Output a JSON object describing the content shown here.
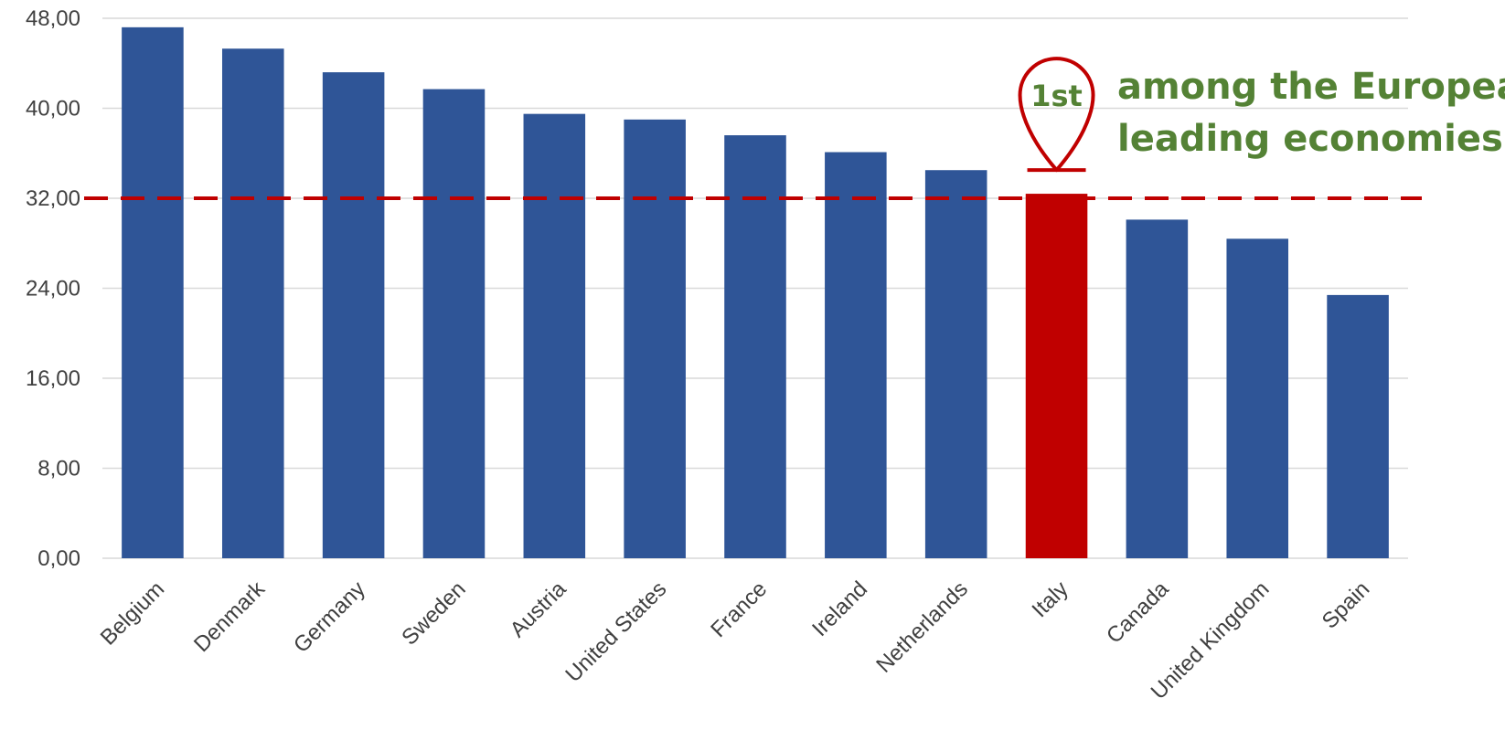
{
  "chart_data": {
    "type": "bar",
    "categories": [
      "Belgium",
      "Denmark",
      "Germany",
      "Sweden",
      "Austria",
      "United States",
      "France",
      "Ireland",
      "Netherlands",
      "Italy",
      "Canada",
      "United Kingdom",
      "Spain"
    ],
    "values": [
      47.2,
      45.3,
      43.2,
      41.7,
      39.5,
      39.0,
      37.6,
      36.1,
      34.5,
      32.4,
      30.1,
      28.4,
      23.4
    ],
    "highlight_index": 9,
    "reference_line": 32.0,
    "ylim": [
      0,
      48
    ],
    "yticks": [
      "0,00",
      "8,00",
      "16,00",
      "24,00",
      "32,00",
      "40,00",
      "48,00"
    ],
    "grid": true,
    "title": "",
    "xlabel": "",
    "ylabel": "",
    "annotation": {
      "rank": "1st",
      "line1": "among the European",
      "line2": "leading economies"
    },
    "colors": {
      "bar": "#2F5597",
      "highlight": "#C00000",
      "reference_line": "#C00000",
      "annotation_text": "#548235",
      "grid": "#D9D9D9"
    }
  }
}
